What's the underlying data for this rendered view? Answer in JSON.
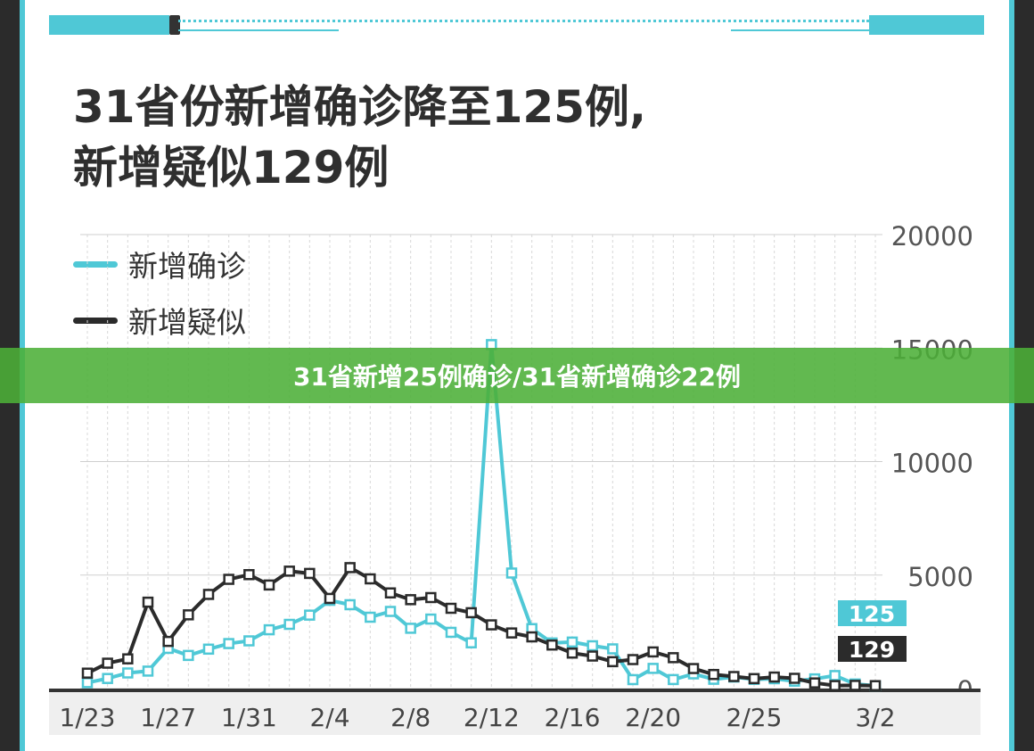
{
  "chart_data": {
    "type": "line",
    "title": "31省份新增确诊降至125例,\n新增疑似129例",
    "x": [
      "1/23",
      "1/24",
      "1/25",
      "1/26",
      "1/27",
      "1/28",
      "1/29",
      "1/30",
      "1/31",
      "2/1",
      "2/2",
      "2/3",
      "2/4",
      "2/5",
      "2/6",
      "2/7",
      "2/8",
      "2/9",
      "2/10",
      "2/11",
      "2/12",
      "2/13",
      "2/14",
      "2/15",
      "2/16",
      "2/17",
      "2/18",
      "2/19",
      "2/20",
      "2/21",
      "2/22",
      "2/23",
      "2/24",
      "2/25",
      "2/26",
      "2/27",
      "2/28",
      "2/29",
      "3/1",
      "3/2"
    ],
    "x_tick_labels": [
      "1/23",
      "1/27",
      "1/31",
      "2/4",
      "2/8",
      "2/12",
      "2/16",
      "2/20",
      "2/25",
      "3/2"
    ],
    "y_tick_labels": [
      "20000",
      "15000",
      "10000",
      "5000",
      "0"
    ],
    "ylim": [
      0,
      20000
    ],
    "grid": true,
    "legend_position": "top-left",
    "series": [
      {
        "name": "新增确诊",
        "color": "#4fc8d6",
        "values": [
          260,
          444,
          688,
          769,
          1771,
          1459,
          1737,
          1982,
          2102,
          2590,
          2829,
          3235,
          3887,
          3694,
          3143,
          3399,
          2656,
          3062,
          2478,
          2015,
          15152,
          5090,
          2641,
          2009,
          2048,
          1886,
          1749,
          394,
          889,
          397,
          648,
          409,
          508,
          406,
          433,
          327,
          427,
          573,
          202,
          125
        ]
      },
      {
        "name": "新增疑似",
        "color": "#2b2b2b",
        "values": [
          680,
          1118,
          1309,
          3806,
          2077,
          3248,
          4148,
          4812,
          5019,
          4562,
          5173,
          5072,
          3971,
          5328,
          4833,
          4214,
          3916,
          4008,
          3536,
          3342,
          2807,
          2450,
          2277,
          1918,
          1563,
          1432,
          1185,
          1277,
          1614,
          1361,
          882,
          620,
          530,
          439,
          508,
          452,
          248,
          132,
          141,
          129
        ]
      }
    ],
    "end_labels": {
      "confirmed": "125",
      "suspected": "129"
    }
  },
  "banner": {
    "text": "31省新增25例确诊/31省新增确诊22例"
  }
}
